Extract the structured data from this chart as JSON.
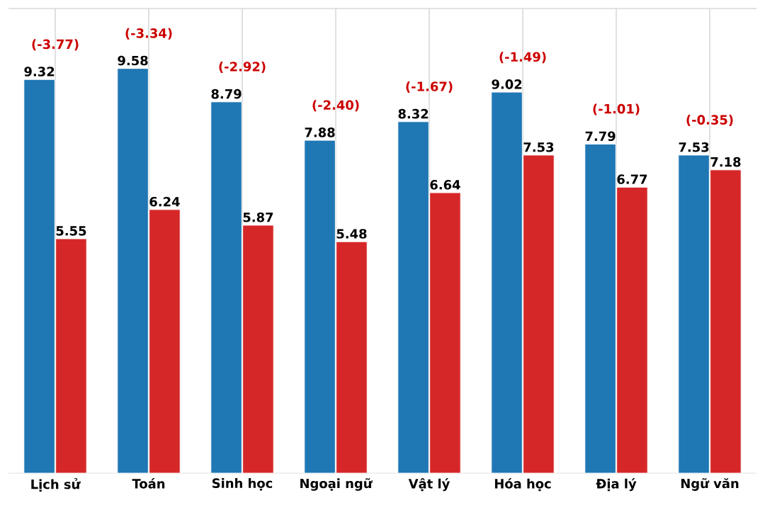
{
  "chart_data": {
    "type": "bar",
    "categories": [
      "Lịch sử",
      "Toán",
      "Sinh học",
      "Ngoại ngữ",
      "Vật lý",
      "Hóa học",
      "Địa lý",
      "Ngữ văn"
    ],
    "series": [
      {
        "color": "#1f77b4",
        "values": [
          9.32,
          9.58,
          8.79,
          7.88,
          8.32,
          9.02,
          7.79,
          7.53
        ]
      },
      {
        "color": "#d62728",
        "values": [
          5.55,
          6.24,
          5.87,
          5.48,
          6.64,
          7.53,
          6.77,
          7.18
        ]
      }
    ],
    "data_labels": true,
    "annotations": [
      "(-3.77)",
      "(-3.34)",
      "(-2.92)",
      "(-2.40)",
      "(-1.67)",
      "(-1.49)",
      "(-1.01)",
      "(-0.35)"
    ],
    "ylim": [
      0,
      11
    ],
    "tick_labels": "x",
    "grid": true
  }
}
